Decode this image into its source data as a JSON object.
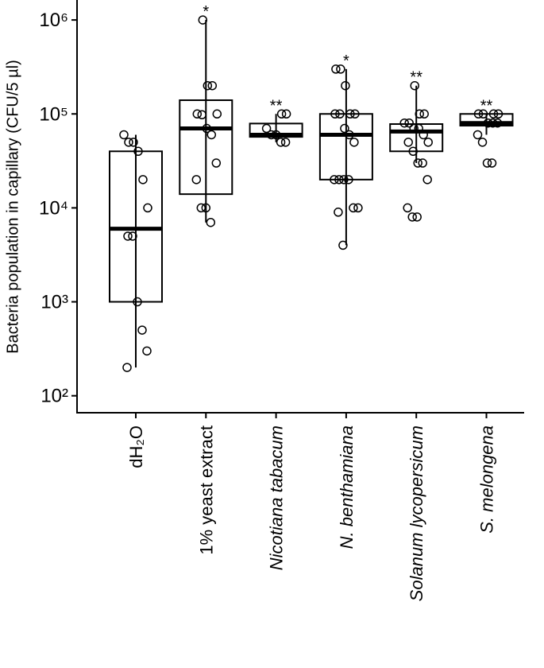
{
  "chart_data": {
    "type": "box",
    "y_label": "Bacteria population in capillary (CFU/5 µl)",
    "categories": [
      "dH₂O",
      "1% yeast extract",
      "Nicotiana tabacum",
      "N. benthamiana",
      "Solanum lycopersicum",
      "S. melongena"
    ],
    "italic": [
      false,
      false,
      true,
      true,
      true,
      true
    ],
    "annotations": [
      null,
      "*",
      "**",
      "*",
      "**",
      "**"
    ],
    "log_scale": true,
    "ylim": [
      66,
      1480000
    ],
    "yticks": [
      {
        "value": 100,
        "label": "10²"
      },
      {
        "value": 1000,
        "label": "10³"
      },
      {
        "value": 10000,
        "label": "10⁴"
      },
      {
        "value": 100000,
        "label": "10⁵"
      },
      {
        "value": 1000000,
        "label": "10⁶"
      }
    ],
    "boxes": [
      {
        "whisker_low": 200,
        "q1": 1000,
        "median": 6000,
        "q3": 40000,
        "whisker_high": 60000
      },
      {
        "whisker_low": 7000,
        "q1": 14000,
        "median": 70000,
        "q3": 140000,
        "whisker_high": 1000000
      },
      {
        "whisker_low": 50000,
        "q1": 57000,
        "median": 60000,
        "q3": 79000,
        "whisker_high": 100000
      },
      {
        "whisker_low": 4000,
        "q1": 20000,
        "median": 60000,
        "q3": 100000,
        "whisker_high": 300000
      },
      {
        "whisker_low": 30000,
        "q1": 40000,
        "median": 65000,
        "q3": 78000,
        "whisker_high": 200000
      },
      {
        "whisker_low": 60000,
        "q1": 75000,
        "median": 80000,
        "q3": 100000,
        "whisker_high": 100000
      }
    ],
    "points": [
      [
        60000,
        50000,
        50000,
        40000,
        20000,
        10000,
        5000,
        5000,
        1000,
        500,
        300,
        200
      ],
      [
        1000000,
        200000,
        200000,
        100000,
        100000,
        98000,
        70000,
        60000,
        30000,
        20000,
        10000,
        10000,
        7000
      ],
      [
        100000,
        100000,
        70000,
        60000,
        60000,
        50000,
        50000
      ],
      [
        300000,
        300000,
        200000,
        100000,
        100000,
        100000,
        100000,
        70000,
        60000,
        50000,
        20000,
        20000,
        20000,
        20000,
        10000,
        10000,
        9000,
        4000
      ],
      [
        200000,
        100000,
        100000,
        80000,
        80000,
        70000,
        70000,
        60000,
        50000,
        50000,
        40000,
        30000,
        30000,
        20000,
        10000,
        8000,
        8000
      ],
      [
        100000,
        100000,
        100000,
        100000,
        80000,
        80000,
        80000,
        60000,
        50000,
        30000,
        30000
      ]
    ]
  }
}
